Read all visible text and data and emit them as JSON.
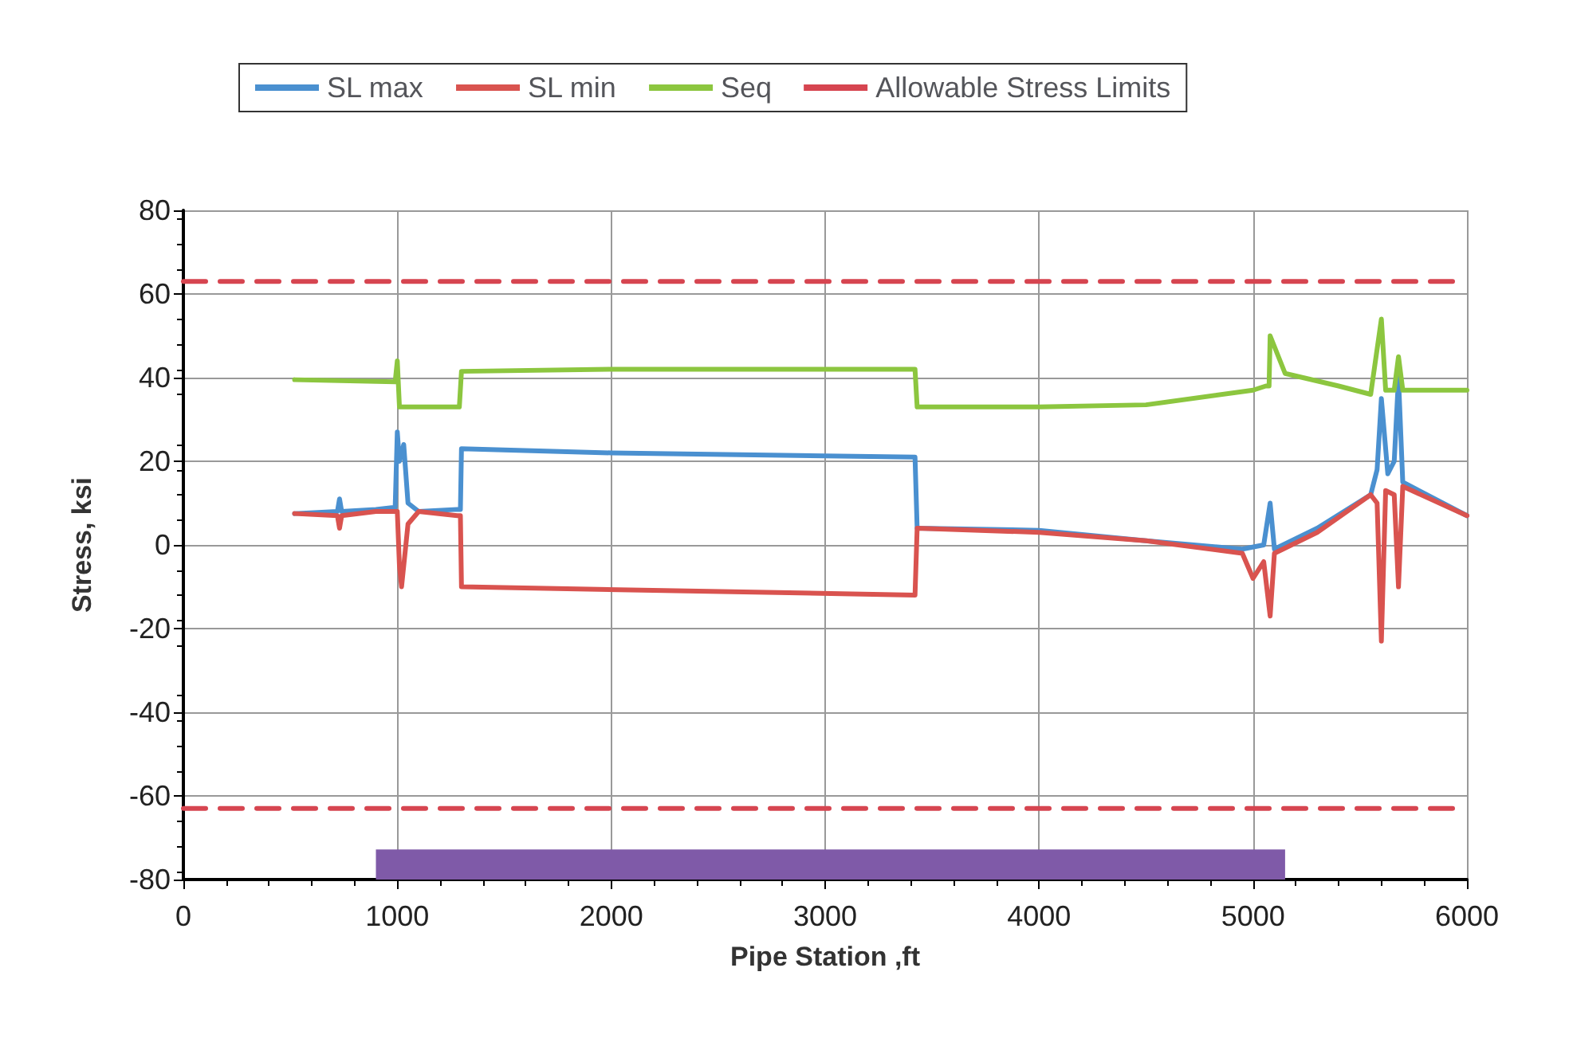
{
  "chart_data": {
    "type": "line",
    "xlabel": "Pipe Station ,ft",
    "ylabel": "Stress, ksi",
    "xlim": [
      0,
      6000
    ],
    "xticks": [
      0,
      1000,
      2000,
      3000,
      4000,
      5000,
      6000
    ],
    "ylim": [
      -80,
      80
    ],
    "yticks": [
      -80,
      -60,
      -40,
      -20,
      0,
      20,
      40,
      60,
      80
    ],
    "grid": true,
    "legend": "top",
    "marker": "none",
    "series": [
      {
        "name": "SL max",
        "color": "#4a90d0",
        "x": [
          520,
          720,
          730,
          740,
          900,
          990,
          1000,
          1010,
          1030,
          1050,
          1100,
          1280,
          1295,
          1300,
          2000,
          3420,
          3425,
          3430,
          4000,
          4500,
          4950,
          5050,
          5080,
          5100,
          5300,
          5550,
          5580,
          5600,
          5630,
          5660,
          5680,
          5700,
          6000
        ],
        "values": [
          7.5,
          8,
          11,
          8,
          8.5,
          9,
          27,
          20,
          24,
          10,
          8,
          8.5,
          8.5,
          23,
          22,
          21,
          21,
          4,
          3.5,
          1,
          -1,
          0,
          10,
          -1,
          4,
          12,
          18,
          35,
          17,
          20,
          40,
          15,
          7
        ]
      },
      {
        "name": "SL min",
        "color": "#d9534f",
        "x": [
          520,
          720,
          730,
          740,
          900,
          1000,
          1010,
          1020,
          1050,
          1100,
          1280,
          1295,
          1300,
          3420,
          3425,
          3430,
          4000,
          4500,
          4950,
          5000,
          5050,
          5080,
          5100,
          5300,
          5550,
          5580,
          5600,
          5620,
          5660,
          5680,
          5700,
          6000
        ],
        "values": [
          7.5,
          7,
          4,
          7,
          8,
          8,
          -5,
          -10,
          5,
          8,
          7,
          7,
          -10,
          -12,
          -12,
          4,
          3,
          1,
          -2,
          -8,
          -4,
          -17,
          -2,
          3,
          12,
          10,
          -23,
          13,
          12,
          -10,
          14,
          7
        ]
      },
      {
        "name": "Seq",
        "color": "#8cc63f",
        "x": [
          520,
          990,
          1000,
          1010,
          1050,
          1290,
          1295,
          1300,
          2000,
          3420,
          3425,
          3430,
          4000,
          4500,
          5000,
          5060,
          5075,
          5080,
          5150,
          5400,
          5550,
          5600,
          5620,
          5660,
          5680,
          5700,
          5750,
          6000
        ],
        "values": [
          39.5,
          39,
          44,
          33,
          33,
          33,
          33,
          41.5,
          42,
          42,
          42,
          33,
          33,
          33.5,
          37,
          38,
          38,
          50,
          41,
          38,
          36,
          54,
          37,
          37,
          45,
          37,
          37,
          37
        ]
      },
      {
        "name": "Allowable Stress Limits",
        "color": "#d64550",
        "line_style": "dashed",
        "x": [
          0,
          6000
        ],
        "values": [
          63,
          63
        ]
      },
      {
        "color": "#d64550",
        "line_style": "dashed",
        "x": [
          0,
          6000
        ],
        "values": [
          -63,
          -63
        ]
      }
    ],
    "bands": [
      {
        "axis": "x",
        "from": 900,
        "to": 5150,
        "color": "#7f5aa8"
      }
    ]
  }
}
